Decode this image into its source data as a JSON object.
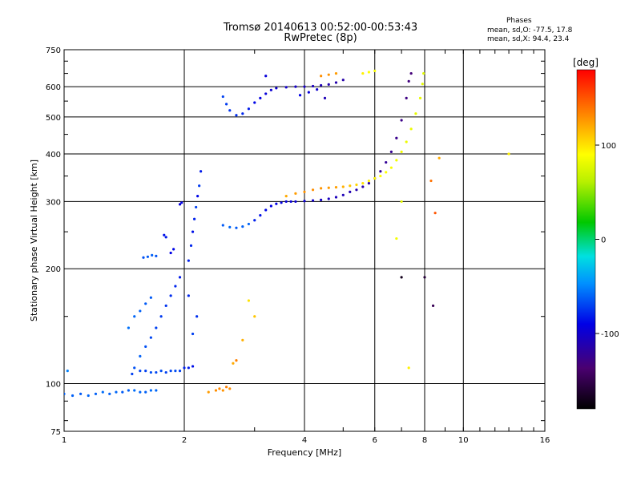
{
  "chart_data": {
    "type": "scatter",
    "title": "Tromsø 20140613 00:52:00-00:53:43",
    "subtitle": "RwPretec (8p)",
    "xlabel": "Frequency [MHz]",
    "ylabel": "Stationary phase Virtual Height [km]",
    "xscale": "log",
    "yscale": "log",
    "xlim": [
      1,
      16
    ],
    "ylim": [
      75,
      750
    ],
    "xticks": [
      1,
      2,
      4,
      6,
      8,
      10,
      16
    ],
    "yticks": [
      75,
      100,
      200,
      300,
      400,
      500,
      600,
      750
    ],
    "grid": true,
    "stats": {
      "heading": "Phases",
      "line_o": "mean, sd,O: -77.5, 17.8",
      "line_x": "mean, sd,X:  94.4, 23.4"
    },
    "colorbar": {
      "label": "[deg]",
      "range": [
        -180,
        180
      ],
      "ticks": [
        100,
        0,
        -100
      ]
    },
    "series": [
      {
        "points": [
          [
            1.0,
            94,
            -60
          ],
          [
            1.05,
            93,
            -60
          ],
          [
            1.1,
            94,
            -62
          ],
          [
            1.15,
            93,
            -58
          ],
          [
            1.2,
            94,
            -60
          ],
          [
            1.25,
            95,
            -56
          ],
          [
            1.3,
            94,
            -60
          ],
          [
            1.35,
            95,
            -58
          ],
          [
            1.4,
            95,
            -62
          ],
          [
            1.45,
            96,
            -60
          ],
          [
            1.5,
            96,
            -56
          ],
          [
            1.55,
            95,
            -58
          ],
          [
            1.6,
            95,
            -60
          ],
          [
            1.65,
            96,
            -56
          ],
          [
            1.7,
            96,
            -58
          ],
          [
            1.02,
            108,
            -50
          ],
          [
            1.48,
            106,
            -70
          ],
          [
            1.5,
            110,
            -65
          ],
          [
            1.55,
            108,
            -68
          ],
          [
            1.6,
            108,
            -70
          ],
          [
            1.65,
            107,
            -66
          ],
          [
            1.7,
            107,
            -68
          ],
          [
            1.75,
            108,
            -66
          ],
          [
            1.8,
            107,
            -70
          ],
          [
            1.85,
            108,
            -68
          ],
          [
            1.9,
            108,
            -66
          ],
          [
            1.95,
            108,
            -70
          ],
          [
            2.0,
            110,
            -80
          ],
          [
            2.05,
            110,
            -82
          ],
          [
            2.1,
            111,
            -85
          ],
          [
            1.58,
            214,
            -65
          ],
          [
            1.62,
            215,
            -62
          ],
          [
            1.66,
            217,
            -60
          ],
          [
            1.7,
            216,
            -64
          ],
          [
            1.78,
            245,
            -85
          ],
          [
            1.8,
            242,
            -82
          ],
          [
            1.85,
            220,
            -90
          ],
          [
            1.88,
            225,
            -88
          ],
          [
            1.95,
            295,
            -95
          ],
          [
            1.97,
            298,
            -92
          ],
          [
            2.05,
            210,
            -80
          ],
          [
            2.08,
            230,
            -78
          ],
          [
            2.1,
            250,
            -85
          ],
          [
            2.12,
            270,
            -80
          ],
          [
            2.14,
            290,
            -70
          ],
          [
            2.16,
            310,
            -88
          ],
          [
            2.18,
            330,
            -72
          ],
          [
            2.2,
            360,
            -82
          ],
          [
            2.15,
            150,
            -75
          ],
          [
            2.1,
            135,
            -70
          ],
          [
            2.05,
            170,
            -78
          ],
          [
            1.55,
            118,
            -60
          ],
          [
            1.6,
            125,
            -65
          ],
          [
            1.65,
            132,
            -68
          ],
          [
            1.7,
            140,
            -70
          ],
          [
            1.75,
            150,
            -72
          ],
          [
            1.8,
            160,
            -74
          ],
          [
            1.85,
            170,
            -76
          ],
          [
            1.9,
            180,
            -78
          ],
          [
            1.95,
            190,
            -82
          ],
          [
            1.45,
            140,
            -55
          ],
          [
            1.5,
            150,
            -58
          ],
          [
            1.55,
            155,
            -60
          ],
          [
            1.6,
            162,
            -62
          ],
          [
            1.65,
            168,
            -62
          ],
          [
            2.5,
            260,
            -62
          ],
          [
            2.6,
            257,
            -58
          ],
          [
            2.7,
            256,
            -62
          ],
          [
            2.8,
            258,
            -60
          ],
          [
            2.9,
            262,
            -58
          ],
          [
            3.0,
            268,
            -80
          ],
          [
            3.1,
            276,
            -85
          ],
          [
            3.2,
            285,
            -88
          ],
          [
            3.3,
            292,
            -90
          ],
          [
            3.4,
            296,
            -92
          ],
          [
            3.5,
            298,
            -94
          ],
          [
            3.6,
            300,
            -95
          ],
          [
            3.7,
            300,
            -96
          ],
          [
            3.8,
            300,
            -98
          ],
          [
            4.0,
            301,
            -100
          ],
          [
            4.2,
            302,
            -102
          ],
          [
            4.4,
            303,
            -104
          ],
          [
            4.6,
            305,
            -106
          ],
          [
            4.8,
            308,
            -108
          ],
          [
            5.0,
            312,
            -110
          ],
          [
            5.2,
            318,
            -112
          ],
          [
            5.4,
            322,
            -114
          ],
          [
            5.6,
            328,
            -116
          ],
          [
            5.8,
            335,
            -118
          ],
          [
            6.0,
            345,
            -120
          ],
          [
            6.2,
            360,
            -122
          ],
          [
            6.4,
            380,
            -124
          ],
          [
            6.6,
            405,
            -126
          ],
          [
            6.8,
            440,
            -128
          ],
          [
            7.0,
            490,
            -130
          ],
          [
            7.2,
            560,
            -132
          ],
          [
            7.3,
            620,
            -134
          ],
          [
            7.4,
            650,
            -136
          ],
          [
            2.5,
            565,
            -70
          ],
          [
            2.55,
            540,
            -72
          ],
          [
            2.6,
            520,
            -74
          ],
          [
            2.7,
            505,
            -76
          ],
          [
            2.8,
            510,
            -78
          ],
          [
            2.9,
            525,
            -82
          ],
          [
            3.0,
            545,
            -88
          ],
          [
            3.1,
            560,
            -92
          ],
          [
            3.2,
            575,
            -95
          ],
          [
            3.3,
            588,
            -98
          ],
          [
            3.4,
            595,
            -100
          ],
          [
            3.6,
            598,
            -102
          ],
          [
            3.8,
            600,
            -104
          ],
          [
            4.0,
            600,
            -106
          ],
          [
            4.2,
            602,
            -108
          ],
          [
            4.4,
            605,
            -110
          ],
          [
            4.6,
            608,
            -112
          ],
          [
            4.8,
            615,
            -114
          ],
          [
            5.0,
            625,
            -116
          ],
          [
            3.2,
            640,
            -95
          ],
          [
            4.5,
            560,
            -110
          ],
          [
            3.9,
            570,
            -90
          ],
          [
            4.1,
            580,
            -95
          ],
          [
            4.3,
            590,
            -100
          ]
        ]
      },
      {
        "points": [
          [
            3.6,
            310,
            120
          ],
          [
            3.8,
            315,
            125
          ],
          [
            4.0,
            318,
            128
          ],
          [
            4.2,
            322,
            130
          ],
          [
            4.4,
            325,
            128
          ],
          [
            4.6,
            326,
            126
          ],
          [
            4.8,
            327,
            124
          ],
          [
            5.0,
            328,
            118
          ],
          [
            5.2,
            330,
            110
          ],
          [
            5.4,
            332,
            105
          ],
          [
            5.6,
            335,
            100
          ],
          [
            5.8,
            340,
            95
          ],
          [
            6.0,
            345,
            92
          ],
          [
            6.2,
            350,
            90
          ],
          [
            6.4,
            358,
            88
          ],
          [
            6.6,
            368,
            86
          ],
          [
            6.8,
            385,
            84
          ],
          [
            7.0,
            405,
            84
          ],
          [
            7.2,
            430,
            82
          ],
          [
            7.4,
            465,
            82
          ],
          [
            7.6,
            510,
            80
          ],
          [
            7.8,
            560,
            80
          ],
          [
            7.9,
            610,
            78
          ],
          [
            7.95,
            650,
            76
          ],
          [
            2.4,
            96,
            130
          ],
          [
            2.45,
            97,
            132
          ],
          [
            2.5,
            96,
            128
          ],
          [
            2.55,
            98,
            135
          ],
          [
            2.6,
            97,
            130
          ],
          [
            2.3,
            95,
            125
          ],
          [
            2.65,
            113,
            120
          ],
          [
            2.7,
            115,
            135
          ],
          [
            2.8,
            130,
            118
          ],
          [
            3.0,
            150,
            110
          ],
          [
            2.9,
            165,
            100
          ],
          [
            4.4,
            640,
            130
          ],
          [
            4.6,
            645,
            128
          ],
          [
            4.8,
            650,
            125
          ],
          [
            5.6,
            650,
            95
          ],
          [
            5.8,
            655,
            90
          ],
          [
            6.0,
            660,
            88
          ],
          [
            6.8,
            240,
            85
          ],
          [
            7.0,
            300,
            80
          ],
          [
            7.3,
            110,
            95
          ],
          [
            8.3,
            340,
            140
          ],
          [
            8.5,
            280,
            150
          ],
          [
            8.7,
            390,
            120
          ],
          [
            13.0,
            400,
            95
          ],
          [
            8.0,
            190,
            -160
          ],
          [
            7.0,
            190,
            -170
          ],
          [
            8.4,
            160,
            -150
          ]
        ]
      }
    ]
  }
}
